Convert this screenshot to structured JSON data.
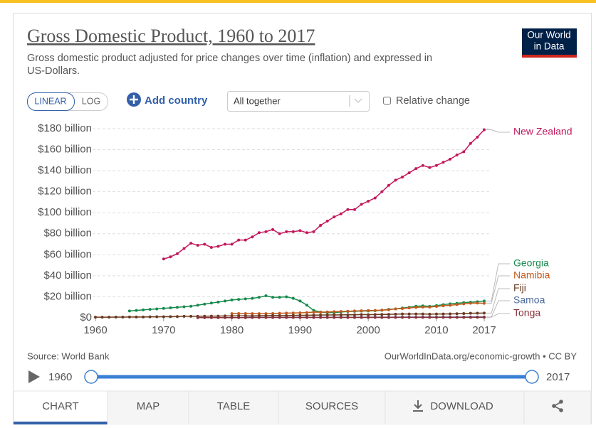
{
  "header": {
    "title": "Gross Domestic Product, 1960 to 2017",
    "subtitle_line1": "Gross domestic product adjusted for price changes over time (inflation) and expressed in",
    "subtitle_line2": "US-Dollars.",
    "logo_line1": "Our World",
    "logo_line2": "in Data"
  },
  "controls": {
    "linear": "LINEAR",
    "log": "LOG",
    "add_country": "Add country",
    "dropdown": "All together",
    "relative_change": "Relative change"
  },
  "footer": {
    "source": "Source: World Bank",
    "license": "OurWorldInData.org/economic-growth • CC BY"
  },
  "tabs": [
    "CHART",
    "MAP",
    "TABLE",
    "SOURCES",
    "DOWNLOAD"
  ],
  "chart_data": {
    "type": "line",
    "x": [
      1960,
      1961,
      1962,
      1963,
      1964,
      1965,
      1966,
      1967,
      1968,
      1969,
      1970,
      1971,
      1972,
      1973,
      1974,
      1975,
      1976,
      1977,
      1978,
      1979,
      1980,
      1981,
      1982,
      1983,
      1984,
      1985,
      1986,
      1987,
      1988,
      1989,
      1990,
      1991,
      1992,
      1993,
      1994,
      1995,
      1996,
      1997,
      1998,
      1999,
      2000,
      2001,
      2002,
      2003,
      2004,
      2005,
      2006,
      2007,
      2008,
      2009,
      2010,
      2011,
      2012,
      2013,
      2014,
      2015,
      2016,
      2017
    ],
    "xlim": [
      1960,
      2017
    ],
    "xticks": [
      1960,
      1970,
      1980,
      1990,
      2000,
      2010,
      2017
    ],
    "ylim": [
      0,
      180
    ],
    "yticks": [
      {
        "value": 0,
        "label": "$0"
      },
      {
        "value": 20,
        "label": "$20 billion"
      },
      {
        "value": 40,
        "label": "$40 billion"
      },
      {
        "value": 60,
        "label": "$60 billion"
      },
      {
        "value": 80,
        "label": "$80 billion"
      },
      {
        "value": 100,
        "label": "$100 billion"
      },
      {
        "value": 120,
        "label": "$120 billion"
      },
      {
        "value": 140,
        "label": "$140 billion"
      },
      {
        "value": 160,
        "label": "$160 billion"
      },
      {
        "value": 180,
        "label": "$180 billion"
      }
    ],
    "grid": true,
    "series": [
      {
        "name": "New Zealand",
        "color": "#c2185b",
        "values": [
          null,
          null,
          null,
          null,
          null,
          null,
          null,
          null,
          null,
          null,
          56,
          58,
          61,
          66,
          71,
          69,
          70,
          67,
          68,
          70,
          70,
          74,
          74,
          77,
          81,
          82,
          84,
          80,
          82,
          82,
          83,
          81,
          82,
          88,
          92,
          96,
          99,
          103,
          103,
          108,
          111,
          114,
          120,
          126,
          131,
          134,
          138,
          142,
          145,
          143,
          145,
          148,
          151,
          155,
          158,
          166,
          172,
          179
        ]
      },
      {
        "name": "Georgia",
        "color": "#178a4c",
        "values": [
          null,
          null,
          null,
          null,
          null,
          6.5,
          7,
          7.5,
          8,
          8.5,
          9,
          9.5,
          10,
          10.5,
          11,
          12,
          13,
          14,
          15,
          16,
          17,
          17.5,
          18,
          18.5,
          19.5,
          21,
          19.5,
          19.5,
          20,
          18.5,
          16,
          12,
          7,
          5.5,
          5,
          5,
          5.5,
          6,
          6.2,
          6.4,
          6.5,
          6.8,
          7.2,
          8,
          8.5,
          9.3,
          10,
          11,
          11.3,
          10.9,
          11.6,
          12.5,
          13.3,
          13.8,
          14.5,
          14.9,
          15.3,
          16
        ]
      },
      {
        "name": "Namibia",
        "color": "#c15b1e",
        "values": [
          null,
          null,
          null,
          null,
          null,
          null,
          null,
          null,
          null,
          null,
          null,
          null,
          null,
          null,
          null,
          null,
          null,
          null,
          null,
          null,
          4,
          4.1,
          4.1,
          4,
          4,
          4,
          4.1,
          4.3,
          4.5,
          4.6,
          4.7,
          5,
          5.4,
          5.3,
          5.6,
          5.8,
          6,
          6.3,
          6.5,
          6.7,
          6.9,
          7,
          7.3,
          7.6,
          8.5,
          8.8,
          9.4,
          9.9,
          10.2,
          10.2,
          10.8,
          11.4,
          11.9,
          12.6,
          13.3,
          13.9,
          14,
          13.8
        ]
      },
      {
        "name": "Fiji",
        "color": "#6b3a1e",
        "values": [
          0.6,
          0.6,
          0.6,
          0.7,
          0.7,
          0.8,
          0.8,
          0.8,
          0.9,
          1,
          1,
          1.1,
          1.2,
          1.4,
          1.4,
          1.4,
          1.5,
          1.6,
          1.6,
          1.8,
          1.8,
          1.9,
          1.9,
          1.8,
          2,
          2,
          2.2,
          2.1,
          2,
          2.3,
          2.4,
          2.4,
          2.5,
          2.6,
          2.7,
          2.7,
          2.8,
          2.9,
          2.9,
          3.1,
          3,
          3.1,
          3.2,
          3.3,
          3.5,
          3.6,
          3.6,
          3.6,
          3.6,
          3.5,
          3.6,
          3.6,
          3.7,
          3.9,
          4.1,
          4.3,
          4.4,
          4.5
        ]
      },
      {
        "name": "Samoa",
        "color": "#4c6a9c",
        "values": [
          null,
          null,
          null,
          null,
          null,
          null,
          null,
          null,
          null,
          null,
          null,
          null,
          null,
          null,
          null,
          null,
          null,
          null,
          null,
          null,
          null,
          null,
          0.4,
          0.4,
          0.4,
          0.4,
          0.4,
          0.4,
          0.4,
          0.4,
          0.4,
          0.4,
          0.4,
          0.4,
          0.4,
          0.5,
          0.5,
          0.5,
          0.5,
          0.5,
          0.6,
          0.6,
          0.6,
          0.6,
          0.6,
          0.7,
          0.7,
          0.7,
          0.7,
          0.7,
          0.7,
          0.7,
          0.7,
          0.7,
          0.7,
          0.8,
          0.8,
          0.8
        ]
      },
      {
        "name": "Tonga",
        "color": "#883039",
        "values": [
          null,
          null,
          null,
          null,
          null,
          null,
          null,
          null,
          null,
          null,
          null,
          null,
          null,
          null,
          null,
          0.2,
          0.2,
          0.2,
          0.2,
          0.2,
          0.2,
          0.2,
          0.2,
          0.3,
          0.3,
          0.3,
          0.3,
          0.3,
          0.3,
          0.3,
          0.3,
          0.3,
          0.3,
          0.3,
          0.3,
          0.3,
          0.3,
          0.3,
          0.3,
          0.3,
          0.3,
          0.3,
          0.3,
          0.3,
          0.4,
          0.4,
          0.4,
          0.4,
          0.4,
          0.4,
          0.4,
          0.4,
          0.4,
          0.4,
          0.4,
          0.4,
          0.5,
          0.5
        ]
      }
    ]
  }
}
